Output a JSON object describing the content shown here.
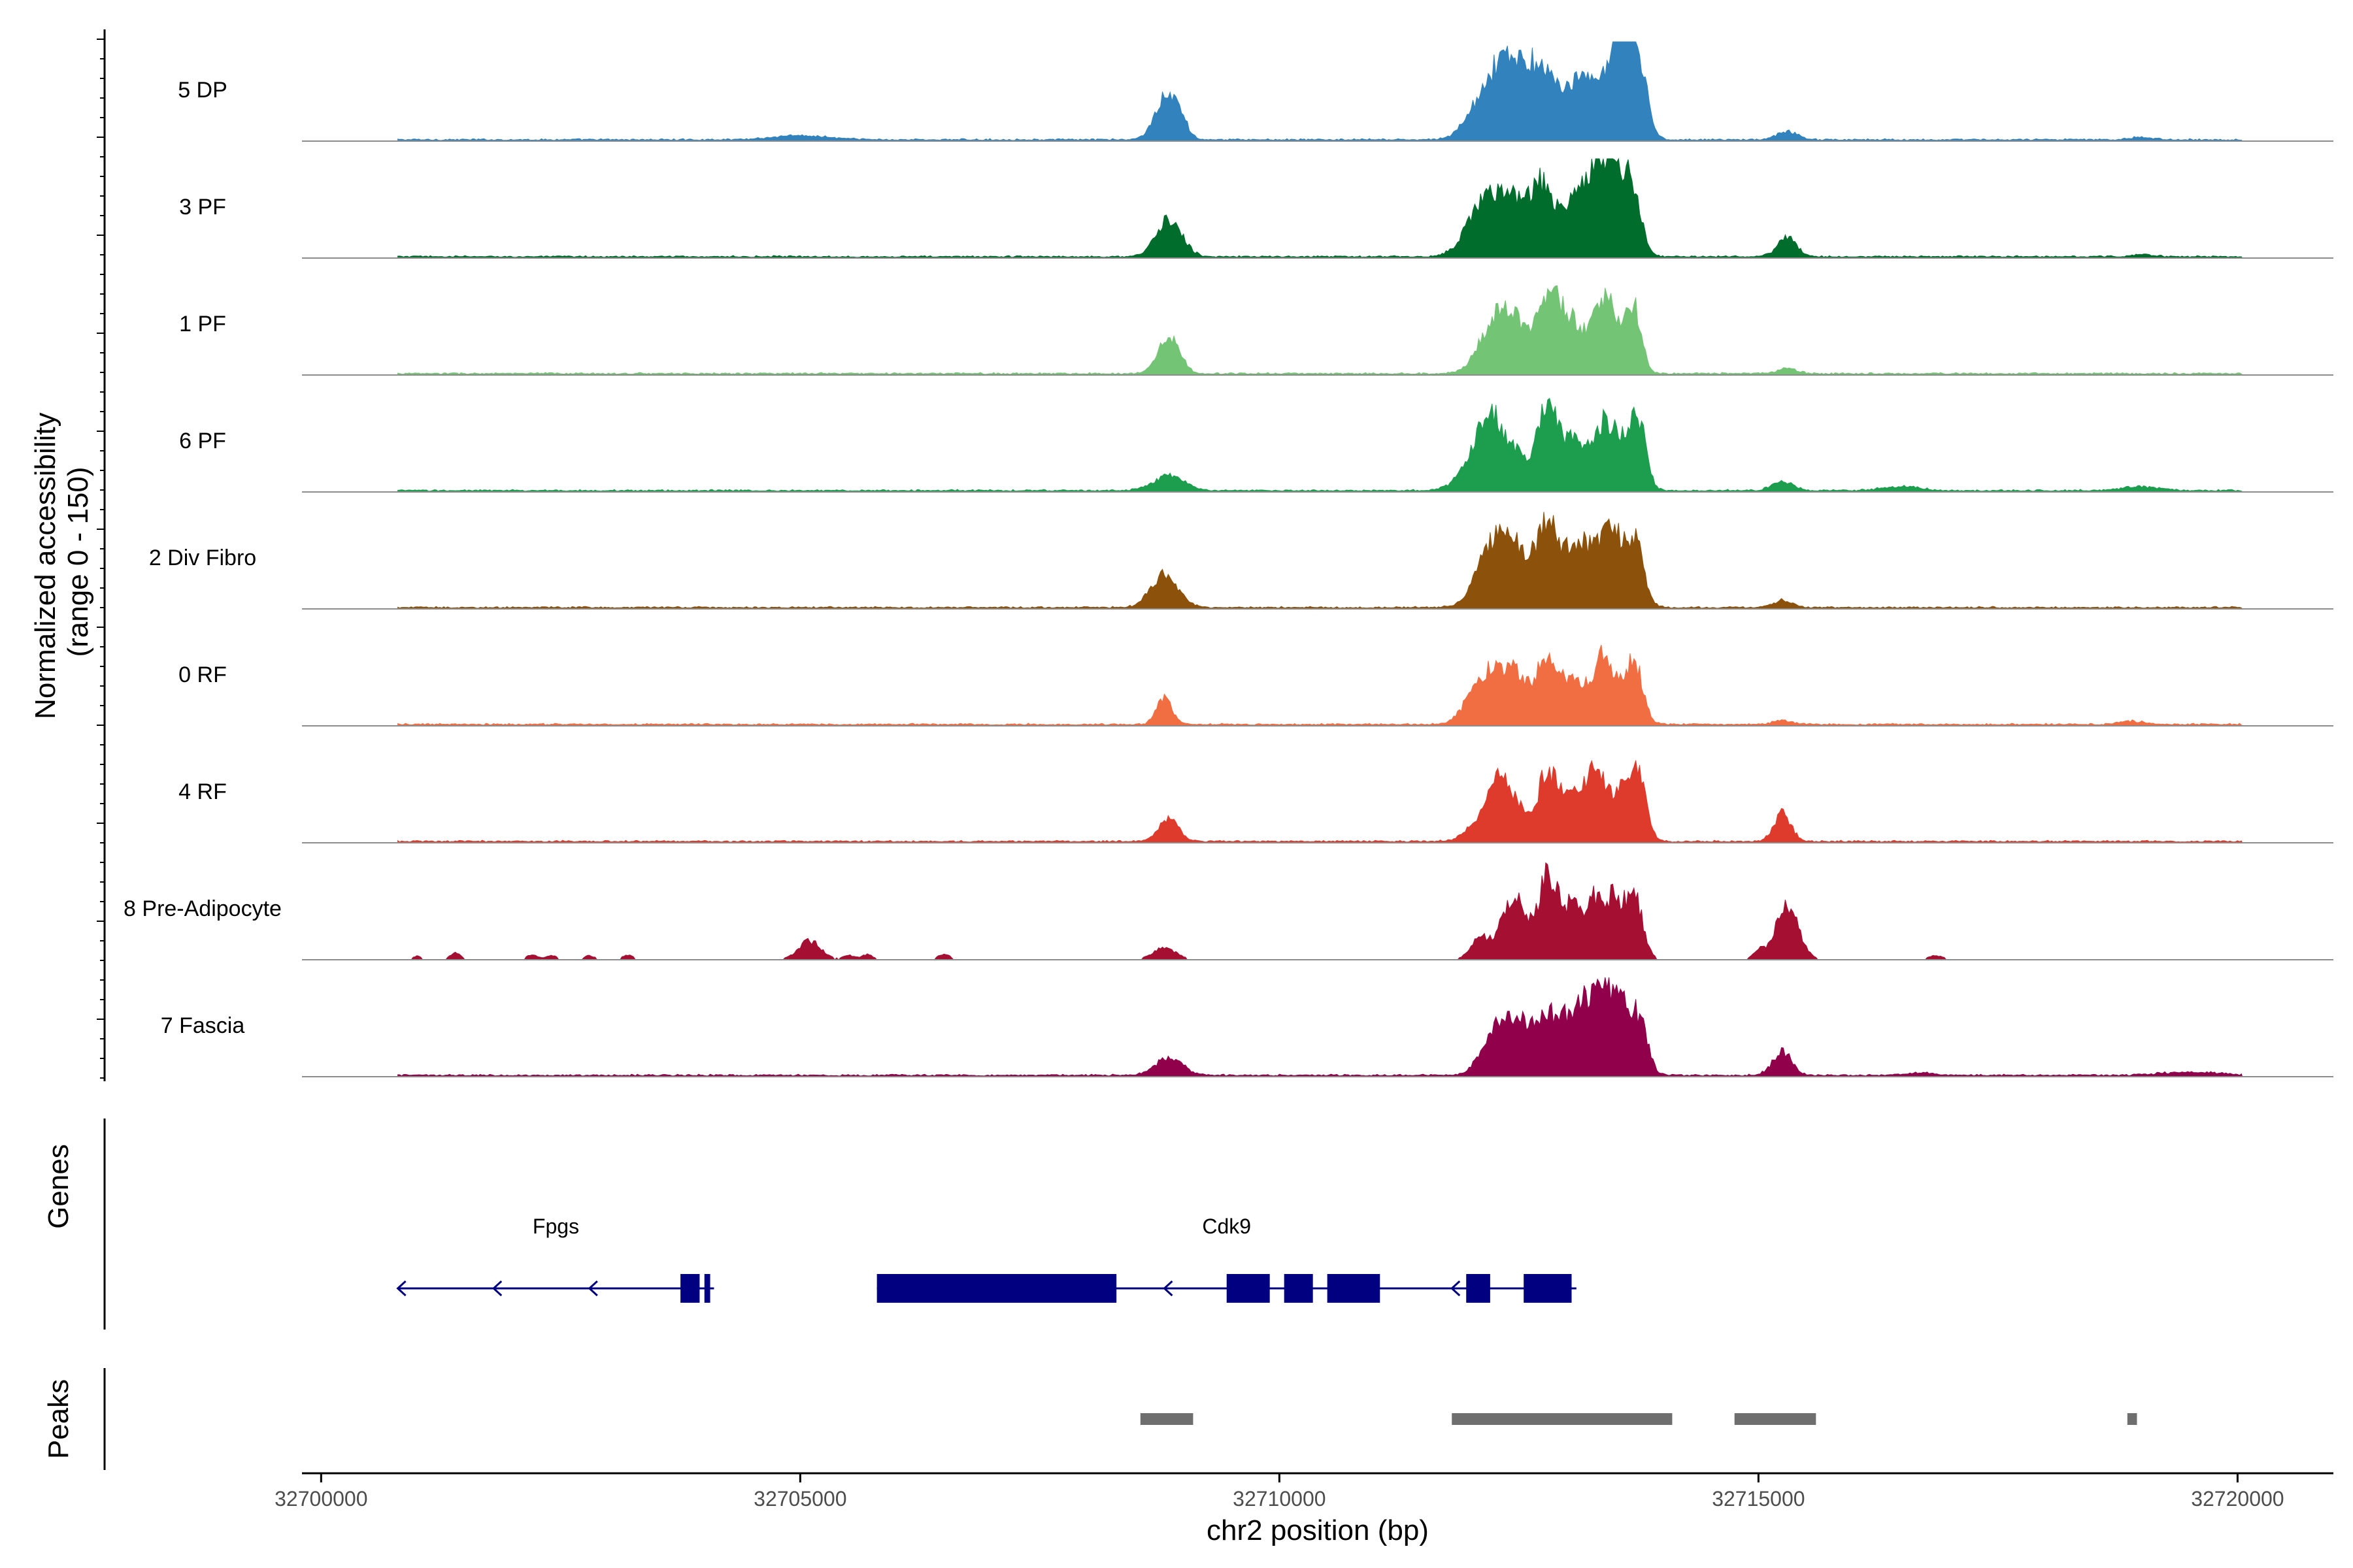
{
  "chart_data": {
    "type": "area",
    "title": "",
    "xlabel": "chr2 position (bp)",
    "ylabel": "Normalized accessibility\n(range 0 - 150)",
    "ylabel_lines": [
      "Normalized accessibility",
      "(range 0 - 150)"
    ],
    "y_range": [
      0,
      150
    ],
    "x_range": [
      32699800,
      32721000
    ],
    "x_ticks": [
      32700000,
      32705000,
      32710000,
      32715000,
      32720000
    ],
    "x_tick_labels": [
      "32700000",
      "32705000",
      "32710000",
      "32715000",
      "32720000"
    ],
    "grid": false,
    "legend": "none",
    "series": [
      {
        "name": "5 DP",
        "color": "#3182BD",
        "sparse": false,
        "peaks": [
          [
            32705000,
            6,
            300
          ],
          [
            32708800,
            60,
            110
          ],
          [
            32708950,
            34,
            80
          ],
          [
            32712050,
            40,
            140
          ],
          [
            32712350,
            118,
            160
          ],
          [
            32712600,
            62,
            120
          ],
          [
            32712800,
            85,
            130
          ],
          [
            32713150,
            86,
            140
          ],
          [
            32713450,
            88,
            110
          ],
          [
            32713600,
            115,
            90
          ],
          [
            32713750,
            112,
            90
          ],
          [
            32715300,
            12,
            110
          ],
          [
            32719000,
            4,
            120
          ]
        ]
      },
      {
        "name": "3 PF",
        "color": "#006D2C",
        "sparse": false,
        "peaks": [
          [
            32708850,
            58,
            130
          ],
          [
            32712150,
            85,
            180
          ],
          [
            32712450,
            70,
            150
          ],
          [
            32712750,
            100,
            120
          ],
          [
            32713100,
            84,
            140
          ],
          [
            32713350,
            120,
            110
          ],
          [
            32713550,
            100,
            110
          ],
          [
            32713700,
            70,
            90
          ],
          [
            32715300,
            28,
            100
          ],
          [
            32719000,
            3,
            120
          ]
        ]
      },
      {
        "name": "1 PF",
        "color": "#74C476",
        "sparse": false,
        "peaks": [
          [
            32708850,
            55,
            110
          ],
          [
            32712250,
            80,
            160
          ],
          [
            32712500,
            55,
            130
          ],
          [
            32712800,
            108,
            110
          ],
          [
            32713050,
            78,
            130
          ],
          [
            32713350,
            88,
            100
          ],
          [
            32713500,
            62,
            90
          ],
          [
            32713700,
            100,
            80
          ],
          [
            32715300,
            8,
            100
          ]
        ]
      },
      {
        "name": "6 PF",
        "color": "#1D9E4E",
        "sparse": false,
        "peaks": [
          [
            32708850,
            22,
            160
          ],
          [
            32712000,
            30,
            150
          ],
          [
            32712200,
            100,
            130
          ],
          [
            32712450,
            50,
            120
          ],
          [
            32712800,
            130,
            110
          ],
          [
            32713100,
            75,
            140
          ],
          [
            32713400,
            95,
            100
          ],
          [
            32713600,
            60,
            90
          ],
          [
            32713750,
            98,
            80
          ],
          [
            32715250,
            14,
            110
          ],
          [
            32716500,
            6,
            200
          ],
          [
            32719000,
            6,
            200
          ]
        ]
      },
      {
        "name": "2 Div Fibro",
        "color": "#8C510A",
        "sparse": false,
        "peaks": [
          [
            32708800,
            50,
            140
          ],
          [
            32712250,
            100,
            170
          ],
          [
            32712500,
            58,
            120
          ],
          [
            32712800,
            125,
            120
          ],
          [
            32713150,
            95,
            150
          ],
          [
            32713450,
            110,
            110
          ],
          [
            32713700,
            100,
            100
          ],
          [
            32715250,
            10,
            110
          ]
        ]
      },
      {
        "name": "0 RF",
        "color": "#F16D42",
        "sparse": false,
        "peaks": [
          [
            32708800,
            40,
            80
          ],
          [
            32712150,
            74,
            170
          ],
          [
            32712450,
            70,
            130
          ],
          [
            32712800,
            100,
            120
          ],
          [
            32713100,
            56,
            130
          ],
          [
            32713400,
            100,
            110
          ],
          [
            32713700,
            98,
            90
          ],
          [
            32715250,
            6,
            110
          ],
          [
            32718900,
            5,
            120
          ]
        ]
      },
      {
        "name": "4 RF",
        "color": "#DE3B2C",
        "sparse": false,
        "peaks": [
          [
            32708850,
            36,
            100
          ],
          [
            32712100,
            30,
            140
          ],
          [
            32712300,
            78,
            110
          ],
          [
            32712500,
            40,
            110
          ],
          [
            32712800,
            105,
            100
          ],
          [
            32713050,
            70,
            100
          ],
          [
            32713300,
            100,
            110
          ],
          [
            32713550,
            70,
            90
          ],
          [
            32713750,
            100,
            80
          ],
          [
            32715250,
            42,
            90
          ]
        ]
      },
      {
        "name": "8 Pre-Adipocyte",
        "color": "#A50F32",
        "sparse": true,
        "peaks": [
          [
            32701000,
            6,
            40
          ],
          [
            32701400,
            10,
            60
          ],
          [
            32702200,
            7,
            60
          ],
          [
            32702400,
            7,
            60
          ],
          [
            32702800,
            6,
            60
          ],
          [
            32703200,
            7,
            60
          ],
          [
            32705100,
            28,
            120
          ],
          [
            32705500,
            7,
            60
          ],
          [
            32705700,
            8,
            60
          ],
          [
            32706500,
            9,
            60
          ],
          [
            32708800,
            18,
            120
          ],
          [
            32712100,
            36,
            100
          ],
          [
            32712400,
            82,
            100
          ],
          [
            32712550,
            45,
            80
          ],
          [
            32712800,
            128,
            100
          ],
          [
            32713050,
            75,
            100
          ],
          [
            32713300,
            92,
            100
          ],
          [
            32713500,
            78,
            80
          ],
          [
            32713700,
            98,
            90
          ],
          [
            32715000,
            13,
            60
          ],
          [
            32715300,
            82,
            120
          ],
          [
            32716850,
            6,
            80
          ]
        ]
      },
      {
        "name": "7 Fascia",
        "color": "#91004B",
        "sparse": false,
        "peaks": [
          [
            32708850,
            26,
            140
          ],
          [
            32712300,
            80,
            160
          ],
          [
            32712550,
            50,
            110
          ],
          [
            32712800,
            88,
            120
          ],
          [
            32713100,
            96,
            130
          ],
          [
            32713350,
            115,
            110
          ],
          [
            32713550,
            90,
            90
          ],
          [
            32713750,
            85,
            90
          ],
          [
            32715250,
            36,
            100
          ],
          [
            32716700,
            4,
            150
          ],
          [
            32719500,
            5,
            300
          ]
        ]
      }
    ],
    "genes_track": {
      "label": "Genes",
      "genes": [
        {
          "name": "Fpgs",
          "strand": "-",
          "span": [
            32700800,
            32704100
          ],
          "exons": [
            [
              32703750,
              32703950
            ],
            [
              32704000,
              32704060
            ]
          ]
        },
        {
          "name": "Cdk9",
          "strand": "-",
          "span": [
            32705800,
            32713100
          ],
          "exons": [
            [
              32705800,
              32708300
            ],
            [
              32709450,
              32709900
            ],
            [
              32710050,
              32710350
            ],
            [
              32710500,
              32711050
            ],
            [
              32711950,
              32712200
            ],
            [
              32712550,
              32713050
            ]
          ]
        }
      ],
      "arrow_positions": [
        32700800,
        32701800,
        32702800,
        32708800,
        32711800
      ]
    },
    "peaks_track": {
      "label": "Peaks",
      "regions": [
        [
          32708550,
          32709100
        ],
        [
          32711800,
          32714100
        ],
        [
          32714750,
          32715600
        ],
        [
          32718850,
          32718950
        ]
      ]
    }
  },
  "colors": {
    "gene": "#000080",
    "peak": "#6E6E6E",
    "baseline": "#8C8C8C",
    "axis": "#000000"
  }
}
